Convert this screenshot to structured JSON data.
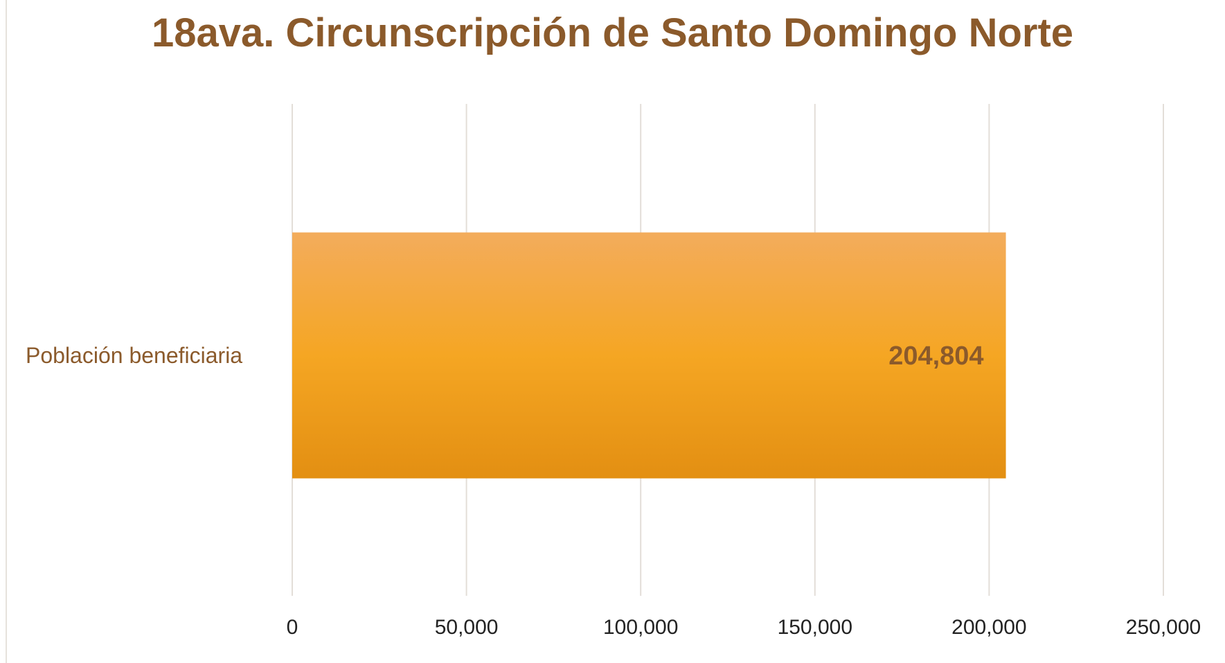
{
  "chart_data": {
    "type": "bar",
    "orientation": "horizontal",
    "title": "18ava. Circunscripción de Santo Domingo Norte",
    "categories": [
      "Población beneficiaria"
    ],
    "values": [
      204804
    ],
    "data_labels": [
      "204,804"
    ],
    "xlim": [
      0,
      250000
    ],
    "ticks": [
      0,
      50000,
      100000,
      150000,
      200000,
      250000
    ],
    "tick_labels": [
      "0",
      "50,000",
      "100,000",
      "150,000",
      "200,000",
      "250,000"
    ],
    "grid": true,
    "legend": "none",
    "colors": {
      "bar_top": "#f3ac5c",
      "bar_mid": "#f5a623",
      "bar_bottom": "#e38f12",
      "text": "#8b5a2b",
      "grid": "#e3ded8"
    }
  }
}
